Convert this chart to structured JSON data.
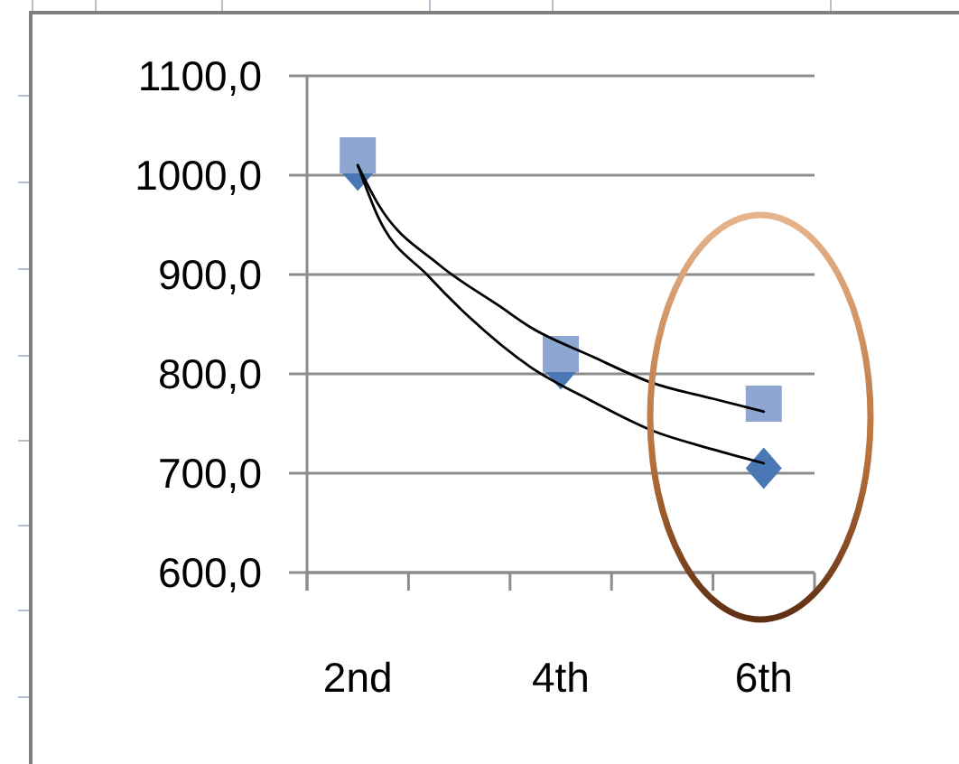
{
  "chart_data": {
    "type": "scatter",
    "xlim": [
      1.5,
      6.5
    ],
    "xticks": [
      {
        "value": 1.5,
        "label": null
      },
      {
        "value": 2,
        "label": "2nd"
      },
      {
        "value": 2.5,
        "label": null
      },
      {
        "value": 3.5,
        "label": null
      },
      {
        "value": 4,
        "label": "4th"
      },
      {
        "value": 4.5,
        "label": null
      },
      {
        "value": 5.5,
        "label": null
      },
      {
        "value": 6,
        "label": "6th"
      },
      {
        "value": 6.5,
        "label": null
      }
    ],
    "ylim": [
      600,
      1100
    ],
    "yticks": [
      {
        "value": 600,
        "label": "600,0"
      },
      {
        "value": 700,
        "label": "700,0"
      },
      {
        "value": 800,
        "label": "800,0"
      },
      {
        "value": 900,
        "label": "900,0"
      },
      {
        "value": 1000,
        "label": "1000,0"
      },
      {
        "value": 1100,
        "label": "1100,0"
      }
    ],
    "grid": "y",
    "series": [
      {
        "x": [
          2,
          4,
          6
        ],
        "values": [
          1005,
          805,
          705
        ],
        "color": "#4a78b4",
        "marker": "diamond"
      },
      {
        "x": [
          2,
          4,
          6
        ],
        "values": [
          1020,
          820,
          770
        ],
        "color": "#8ea6d2",
        "marker": "square"
      },
      {
        "type": "line",
        "x": [
          2,
          2.2,
          2.8,
          3.4,
          3.7,
          4.3,
          4.9,
          5.5,
          6
        ],
        "values": [
          1010,
          971,
          910,
          868,
          847,
          818,
          791,
          775,
          762
        ],
        "color": "#000000",
        "marker": "none"
      },
      {
        "type": "line",
        "x": [
          2,
          2.2,
          2.7,
          3.1,
          3.7,
          4.3,
          4.9,
          5.5,
          6
        ],
        "values": [
          1010,
          958,
          898,
          857,
          807,
          773,
          743,
          724,
          710
        ],
        "color": "#000000",
        "marker": "none"
      }
    ]
  }
}
